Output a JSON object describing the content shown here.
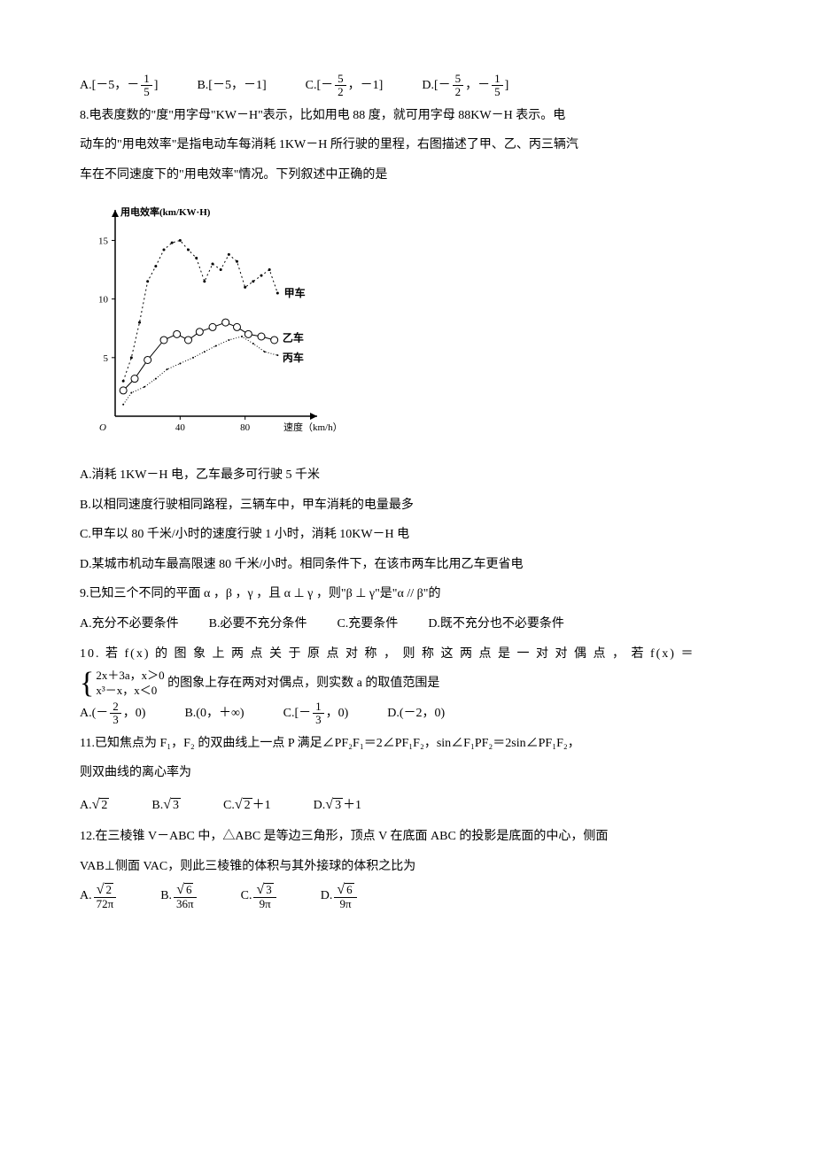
{
  "q7": {
    "optA_label": "A.",
    "optA_open": "[－5，－",
    "optA_frac_n": "1",
    "optA_frac_d": "5",
    "optA_close": "]",
    "optB": "B.[－5，－1]",
    "optC_label": "C.",
    "optC_open": "[－",
    "optC_frac_n": "5",
    "optC_frac_d": "2",
    "optC_close": "，－1]",
    "optD_label": "D.",
    "optD_open": "[－",
    "optD_frac1_n": "5",
    "optD_frac1_d": "2",
    "optD_mid": "，－",
    "optD_frac2_n": "1",
    "optD_frac2_d": "5",
    "optD_close": "]"
  },
  "q8": {
    "stem1": "8.电表度数的\"度\"用字母\"KW－H\"表示，比如用电 88 度，就可用字母 88KW－H 表示。电",
    "stem2": "动车的\"用电效率\"是指电动车每消耗 1KW－H 所行驶的里程，右图描述了甲、乙、丙三辆汽",
    "stem3": "车在不同速度下的\"用电效率\"情况。下列叙述中正确的是",
    "optA": "A.消耗 1KW－H 电，乙车最多可行驶 5 千米",
    "optB": "B.以相同速度行驶相同路程，三辆车中，甲车消耗的电量最多",
    "optC": "C.甲车以 80 千米/小时的速度行驶 1 小时，消耗 10KW－H 电",
    "optD": "D.某城市机动车最高限速 80 千米/小时。相同条件下，在该市两车比用乙车更省电"
  },
  "chart": {
    "type": "line",
    "y_label": "用电效率(km/KW·H)",
    "x_label": "速度（km/h）",
    "x_ticks": [
      40,
      80
    ],
    "y_ticks": [
      5,
      10,
      15
    ],
    "xlim": [
      0,
      120
    ],
    "ylim": [
      0,
      17
    ],
    "background": "#ffffff",
    "axis_color": "#000000",
    "font_size": 11,
    "series": [
      {
        "name": "甲车",
        "label": "甲车",
        "color": "#000000",
        "marker": "dot",
        "marker_size": 3,
        "dash": "2,3",
        "points": [
          [
            5,
            3
          ],
          [
            10,
            5
          ],
          [
            15,
            8
          ],
          [
            20,
            11.5
          ],
          [
            25,
            12.8
          ],
          [
            30,
            14.2
          ],
          [
            35,
            14.8
          ],
          [
            40,
            15
          ],
          [
            45,
            14.2
          ],
          [
            50,
            13.5
          ],
          [
            55,
            11.5
          ],
          [
            60,
            13
          ],
          [
            65,
            12.5
          ],
          [
            70,
            13.8
          ],
          [
            75,
            13.2
          ],
          [
            80,
            11
          ],
          [
            85,
            11.5
          ],
          [
            90,
            12
          ],
          [
            95,
            12.5
          ],
          [
            100,
            10.5
          ]
        ],
        "label_pos": [
          104,
          10.5
        ]
      },
      {
        "name": "乙车",
        "label": "乙车",
        "color": "#000000",
        "marker": "circle",
        "marker_size": 4,
        "dash": "none",
        "points": [
          [
            5,
            2.2
          ],
          [
            12,
            3.2
          ],
          [
            20,
            4.8
          ],
          [
            30,
            6.5
          ],
          [
            38,
            7
          ],
          [
            45,
            6.5
          ],
          [
            52,
            7.2
          ],
          [
            60,
            7.6
          ],
          [
            68,
            8
          ],
          [
            75,
            7.6
          ],
          [
            82,
            7
          ],
          [
            90,
            6.8
          ],
          [
            98,
            6.5
          ]
        ],
        "label_pos": [
          103,
          6.7
        ]
      },
      {
        "name": "丙车",
        "label": "丙车",
        "color": "#000000",
        "marker": "dot",
        "marker_size": 2,
        "dash": "1,2",
        "points": [
          [
            5,
            1
          ],
          [
            10,
            2
          ],
          [
            18,
            2.5
          ],
          [
            25,
            3.2
          ],
          [
            32,
            4
          ],
          [
            40,
            4.5
          ],
          [
            48,
            5
          ],
          [
            55,
            5.5
          ],
          [
            62,
            6
          ],
          [
            70,
            6.5
          ],
          [
            78,
            6.8
          ],
          [
            85,
            6.2
          ],
          [
            92,
            5.5
          ],
          [
            100,
            5.2
          ]
        ],
        "label_pos": [
          103,
          5.0
        ]
      }
    ]
  },
  "q9": {
    "stem": "9.已知三个不同的平面 α ，β ，γ ，且 α ⊥ γ ，则\"β ⊥ γ\"是\"α // β\"的",
    "optA": "A.充分不必要条件",
    "optB": "B.必要不充分条件",
    "optC": "C.充要条件",
    "optD": "D.既不充分也不必要条件"
  },
  "q10": {
    "stem1": "10. 若 f(x) 的 图 象 上 两 点 关 于 原 点 对 称 ， 则 称 这 两 点 是 一 对 对 偶 点 ， 若 f(x) ＝",
    "case1": "2x＋3a，x＞0",
    "case2": "x³－x，x＜0",
    "stem2_tail": "的图象上存在两对对偶点，则实数 a 的取值范围是",
    "optA_label": "A.(－",
    "optA_n": "2",
    "optA_d": "3",
    "optA_close": "，0)",
    "optB": "B.(0，＋∞)",
    "optC_label": "C.[－",
    "optC_n": "1",
    "optC_d": "3",
    "optC_close": "，0)",
    "optD": "D.(－2，0)"
  },
  "q11": {
    "stem1": "11.已知焦点为 F₁，F₂ 的双曲线上一点 P 满足∠PF₂F₁＝2∠PF₁F₂，sin∠F₁PF₂＝2sin∠PF₁F₂，",
    "stem2": "则双曲线的离心率为",
    "optA_label": "A.",
    "optA_rad": "2",
    "optB_label": "B.",
    "optB_rad": "3",
    "optC_label": "C.",
    "optC_rad": "2",
    "optC_tail": "＋1",
    "optD_label": "D.",
    "optD_rad": "3",
    "optD_tail": "＋1"
  },
  "q12": {
    "stem1": "12.在三棱锥 V－ABC 中，△ABC 是等边三角形，顶点 V 在底面 ABC 的投影是底面的中心，侧面",
    "stem2": "VAB⊥侧面 VAC，则此三棱锥的体积与其外接球的体积之比为",
    "optA_label": "A.",
    "optA_n_rad": "2",
    "optA_d": "72π",
    "optB_label": "B.",
    "optB_n_rad": "6",
    "optB_d": "36π",
    "optC_label": "C.",
    "optC_n_rad": "3",
    "optC_d": "9π",
    "optD_label": "D.",
    "optD_n_rad": "6",
    "optD_d": "9π"
  }
}
